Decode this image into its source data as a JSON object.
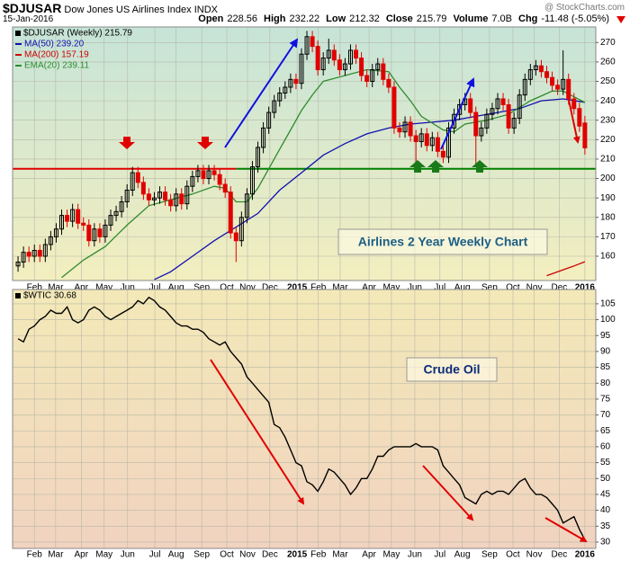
{
  "header": {
    "symbol": "$DJUSAR",
    "name": "Dow Jones US Airlines Index",
    "exchange": "INDX",
    "date": "15-Jan-2016",
    "credit": "@ StockCharts.com",
    "stats": [
      {
        "label": "Open",
        "value": "228.56"
      },
      {
        "label": "High",
        "value": "232.22"
      },
      {
        "label": "Low",
        "value": "212.32"
      },
      {
        "label": "Close",
        "value": "215.79"
      },
      {
        "label": "Volume",
        "value": "7.0B"
      },
      {
        "label": "Chg",
        "value": "-11.48 (-5.05%)"
      }
    ]
  },
  "chart_data": [
    {
      "type": "candlestick",
      "legend_title": "$DJUSAR (Weekly) 215.79",
      "annotation": "Airlines 2 Year Weekly Chart",
      "up_color": "#000000",
      "down_color": "#e00000",
      "hollow_up": true,
      "grid": true,
      "xlim": [
        -1,
        106
      ],
      "ylim": [
        147.5,
        278
      ],
      "yticks": [
        160,
        170,
        180,
        190,
        200,
        210,
        220,
        230,
        240,
        250,
        260,
        270
      ],
      "xticks": [
        {
          "value": 3,
          "label": "Feb"
        },
        {
          "value": 6.9,
          "label": "Mar"
        },
        {
          "value": 11.6,
          "label": "Apr"
        },
        {
          "value": 15.8,
          "label": "May"
        },
        {
          "value": 20.1,
          "label": "Jun"
        },
        {
          "value": 25.1,
          "label": "Jul"
        },
        {
          "value": 29,
          "label": "Aug"
        },
        {
          "value": 33.7,
          "label": "Sep"
        },
        {
          "value": 38.3,
          "label": "Oct"
        },
        {
          "value": 42.1,
          "label": "Nov"
        },
        {
          "value": 46.2,
          "label": "Dec"
        },
        {
          "value": 51.2,
          "label": "2015"
        },
        {
          "value": 55.1,
          "label": "Feb"
        },
        {
          "value": 59.1,
          "label": "Mar"
        },
        {
          "value": 64.4,
          "label": "Apr"
        },
        {
          "value": 68.5,
          "label": "May"
        },
        {
          "value": 72.8,
          "label": "Jun"
        },
        {
          "value": 77.4,
          "label": "Jul"
        },
        {
          "value": 81.5,
          "label": "Aug"
        },
        {
          "value": 86.5,
          "label": "Sep"
        },
        {
          "value": 90.8,
          "label": "Oct"
        },
        {
          "value": 94.7,
          "label": "Nov"
        },
        {
          "value": 99.3,
          "label": "Dec"
        },
        {
          "value": 104,
          "label": "2016"
        }
      ],
      "x": [
        0,
        1,
        2,
        3,
        4,
        5,
        6,
        7,
        8,
        9,
        10,
        11,
        12,
        13,
        14,
        15,
        16,
        17,
        18,
        19,
        20,
        21,
        22,
        23,
        24,
        25,
        26,
        27,
        28,
        29,
        30,
        31,
        32,
        33,
        34,
        35,
        36,
        37,
        38,
        39,
        40,
        41,
        42,
        43,
        44,
        45,
        46,
        47,
        48,
        49,
        50,
        51,
        52,
        53,
        54,
        55,
        56,
        57,
        58,
        59,
        60,
        61,
        62,
        63,
        64,
        65,
        66,
        67,
        68,
        69,
        70,
        71,
        72,
        73,
        74,
        75,
        76,
        77,
        78,
        79,
        80,
        81,
        82,
        83,
        84,
        85,
        86,
        87,
        88,
        89,
        90,
        91,
        92,
        93,
        94,
        95,
        96,
        97,
        98,
        99,
        100,
        101,
        102,
        103,
        104
      ],
      "open": [
        155,
        157,
        162,
        160,
        163,
        160,
        166,
        170,
        174,
        181,
        178,
        184,
        177,
        176,
        168,
        174,
        170,
        176,
        181,
        183,
        188,
        194,
        203,
        198,
        192,
        189,
        190,
        193,
        189,
        186,
        192,
        187,
        196,
        201,
        204,
        200,
        204,
        202,
        197,
        193,
        172,
        168,
        180,
        192,
        206,
        216,
        226,
        234,
        240,
        244,
        247,
        251,
        249,
        264,
        273,
        268,
        256,
        262,
        266,
        261,
        256,
        259,
        266,
        262,
        253,
        250,
        256,
        259,
        251,
        247,
        226,
        224,
        229,
        222,
        219,
        223,
        217,
        221,
        214,
        211,
        226,
        233,
        238,
        241,
        234,
        222,
        226,
        233,
        236,
        241,
        238,
        226,
        231,
        243,
        251,
        256,
        258,
        255,
        252,
        248,
        246,
        251,
        241,
        236,
        228.56
      ],
      "high": [
        160,
        165,
        165,
        166,
        166,
        169,
        173,
        177,
        184,
        184,
        187,
        187,
        180,
        179,
        177,
        177,
        179,
        184,
        186,
        191,
        197,
        206,
        206,
        201,
        195,
        193,
        196,
        196,
        192,
        195,
        195,
        199,
        204,
        207,
        207,
        207,
        207,
        205,
        200,
        196,
        175,
        183,
        195,
        209,
        219,
        229,
        237,
        243,
        247,
        250,
        254,
        254,
        267,
        276,
        276,
        271,
        265,
        272,
        269,
        264,
        262,
        269,
        269,
        265,
        256,
        259,
        262,
        262,
        254,
        250,
        229,
        232,
        232,
        225,
        226,
        226,
        224,
        224,
        217,
        229,
        236,
        241,
        244,
        244,
        237,
        229,
        236,
        239,
        244,
        244,
        241,
        234,
        246,
        254,
        259,
        261,
        261,
        258,
        255,
        251,
        266,
        254,
        244,
        239,
        232.22
      ],
      "low": [
        152,
        154,
        157,
        157,
        157,
        157,
        163,
        167,
        171,
        175,
        175,
        174,
        173,
        165,
        165,
        167,
        167,
        173,
        178,
        180,
        185,
        191,
        195,
        189,
        186,
        186,
        187,
        186,
        183,
        183,
        184,
        184,
        193,
        198,
        197,
        197,
        199,
        194,
        190,
        169,
        157,
        165,
        177,
        189,
        203,
        213,
        223,
        231,
        237,
        241,
        244,
        246,
        246,
        261,
        265,
        253,
        253,
        259,
        258,
        253,
        253,
        256,
        259,
        250,
        247,
        247,
        253,
        248,
        244,
        223,
        221,
        221,
        219,
        208,
        216,
        214,
        214,
        211,
        208,
        208,
        223,
        230,
        235,
        231,
        206,
        219,
        223,
        230,
        233,
        235,
        223,
        223,
        228,
        240,
        248,
        253,
        252,
        249,
        245,
        243,
        243,
        238,
        233,
        224,
        212.32
      ],
      "close": [
        157,
        162,
        160,
        163,
        160,
        166,
        170,
        174,
        181,
        178,
        184,
        177,
        176,
        168,
        174,
        170,
        176,
        181,
        183,
        188,
        194,
        203,
        198,
        192,
        189,
        190,
        193,
        189,
        186,
        192,
        187,
        196,
        201,
        204,
        200,
        204,
        202,
        197,
        193,
        172,
        168,
        180,
        192,
        206,
        216,
        226,
        234,
        240,
        244,
        247,
        251,
        249,
        264,
        273,
        268,
        256,
        262,
        266,
        261,
        256,
        259,
        266,
        262,
        253,
        250,
        256,
        259,
        251,
        247,
        226,
        224,
        229,
        222,
        219,
        223,
        217,
        221,
        214,
        211,
        226,
        233,
        238,
        241,
        234,
        222,
        226,
        233,
        236,
        241,
        238,
        226,
        231,
        243,
        251,
        256,
        258,
        255,
        252,
        248,
        246,
        251,
        241,
        236,
        227,
        215.79
      ],
      "series": [
        {
          "name": "MA(50) 239.20",
          "color": "#1010b0",
          "x": [
            25,
            28,
            32,
            36,
            40,
            44,
            48,
            52,
            56,
            60,
            64,
            68,
            72,
            76,
            80,
            84,
            88,
            92,
            96,
            100,
            104
          ],
          "values": [
            148,
            152,
            160,
            168,
            175,
            182,
            194,
            203,
            212,
            218,
            223,
            226,
            228,
            229,
            230,
            232,
            234,
            236,
            240,
            241,
            239.2
          ]
        },
        {
          "name": "MA(200) 157.19",
          "color": "#cc0000",
          "x": [
            97,
            100,
            102,
            104
          ],
          "values": [
            150,
            153,
            155,
            157.19
          ]
        },
        {
          "name": "EMA(20) 239.11",
          "color": "#2e8b2e",
          "x": [
            8,
            12,
            16,
            20,
            24,
            28,
            32,
            36,
            38,
            40,
            42,
            44,
            46,
            48,
            50,
            52,
            54,
            56,
            60,
            64,
            68,
            70,
            72,
            74,
            78,
            80,
            82,
            86,
            90,
            94,
            98,
            100,
            104
          ],
          "values": [
            149,
            158,
            165,
            176,
            186,
            189,
            192,
            196,
            195,
            188,
            188,
            195,
            205,
            215,
            225,
            235,
            243,
            250,
            253,
            256,
            255,
            247,
            240,
            232,
            225,
            224,
            228,
            230,
            233,
            240,
            245,
            245,
            239.11
          ]
        }
      ],
      "levels": [
        {
          "value": 205,
          "color": "#e00000",
          "from": -1,
          "to": 40
        },
        {
          "value": 205,
          "color": "#008000",
          "from": 40,
          "to": 106
        }
      ]
    },
    {
      "type": "line",
      "legend_title": "$WTIC 30.68",
      "annotation": "Crude Oil",
      "color": "#000000",
      "grid": true,
      "xlim": [
        -1,
        106
      ],
      "ylim": [
        28,
        109.5
      ],
      "yticks": [
        30,
        35,
        40,
        45,
        50,
        55,
        60,
        65,
        70,
        75,
        80,
        85,
        90,
        95,
        100,
        105
      ],
      "xticks": [
        {
          "value": 3,
          "label": "Feb"
        },
        {
          "value": 6.9,
          "label": "Mar"
        },
        {
          "value": 11.6,
          "label": "Apr"
        },
        {
          "value": 15.8,
          "label": "May"
        },
        {
          "value": 20.1,
          "label": "Jun"
        },
        {
          "value": 25.1,
          "label": "Jul"
        },
        {
          "value": 29,
          "label": "Aug"
        },
        {
          "value": 33.7,
          "label": "Sep"
        },
        {
          "value": 38.3,
          "label": "Oct"
        },
        {
          "value": 42.1,
          "label": "Nov"
        },
        {
          "value": 46.2,
          "label": "Dec"
        },
        {
          "value": 51.2,
          "label": "2015"
        },
        {
          "value": 55.1,
          "label": "Feb"
        },
        {
          "value": 59.1,
          "label": "Mar"
        },
        {
          "value": 64.4,
          "label": "Apr"
        },
        {
          "value": 68.5,
          "label": "May"
        },
        {
          "value": 72.8,
          "label": "Jun"
        },
        {
          "value": 77.4,
          "label": "Jul"
        },
        {
          "value": 81.5,
          "label": "Aug"
        },
        {
          "value": 86.5,
          "label": "Sep"
        },
        {
          "value": 90.8,
          "label": "Oct"
        },
        {
          "value": 94.7,
          "label": "Nov"
        },
        {
          "value": 99.3,
          "label": "Dec"
        },
        {
          "value": 104,
          "label": "2016"
        }
      ],
      "x": [
        0,
        1,
        2,
        3,
        4,
        5,
        6,
        7,
        8,
        9,
        10,
        11,
        12,
        13,
        14,
        15,
        16,
        17,
        18,
        19,
        20,
        21,
        22,
        23,
        24,
        25,
        26,
        27,
        28,
        29,
        30,
        31,
        32,
        33,
        34,
        35,
        36,
        37,
        38,
        39,
        40,
        41,
        42,
        43,
        44,
        45,
        46,
        47,
        48,
        49,
        50,
        51,
        52,
        53,
        54,
        55,
        56,
        57,
        58,
        59,
        60,
        61,
        62,
        63,
        64,
        65,
        66,
        67,
        68,
        69,
        70,
        71,
        72,
        73,
        74,
        75,
        76,
        77,
        78,
        79,
        80,
        81,
        82,
        83,
        84,
        85,
        86,
        87,
        88,
        89,
        90,
        91,
        92,
        93,
        94,
        95,
        96,
        97,
        98,
        99,
        100,
        101,
        102,
        103,
        104
      ],
      "values": [
        94,
        93,
        97,
        98,
        100,
        101,
        103,
        102,
        102,
        104,
        100,
        99,
        100,
        103,
        104,
        103,
        101,
        100,
        101,
        102,
        103,
        104,
        106,
        105,
        107,
        106,
        104,
        103,
        101,
        99,
        98,
        98,
        97,
        97,
        96,
        94,
        93,
        92,
        93,
        90,
        88,
        86,
        82,
        80,
        78,
        76,
        74,
        67,
        66,
        63,
        59,
        55,
        54,
        49,
        48,
        46,
        49,
        53,
        52,
        50,
        48,
        45,
        47,
        50,
        50,
        53,
        57,
        57,
        59,
        60,
        60,
        60,
        60,
        61,
        60,
        60,
        60,
        59,
        54,
        52,
        50,
        48,
        44,
        43,
        42,
        45,
        46,
        45,
        46,
        46,
        45,
        47,
        49,
        50,
        47,
        45,
        45,
        44,
        42,
        40,
        36,
        37,
        38,
        34,
        30.68
      ]
    }
  ]
}
